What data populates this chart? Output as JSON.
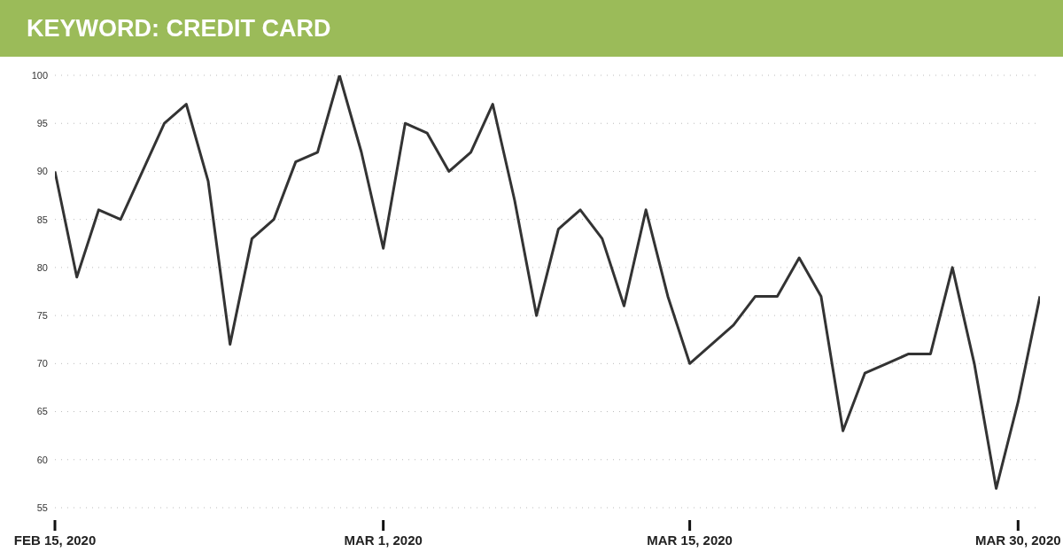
{
  "chart_data": {
    "type": "line",
    "title": "KEYWORD: CREDIT CARD",
    "x": [
      "2020-02-15",
      "2020-02-16",
      "2020-02-17",
      "2020-02-18",
      "2020-02-19",
      "2020-02-20",
      "2020-02-21",
      "2020-02-22",
      "2020-02-23",
      "2020-02-24",
      "2020-02-25",
      "2020-02-26",
      "2020-02-27",
      "2020-02-28",
      "2020-02-29",
      "2020-03-01",
      "2020-03-02",
      "2020-03-03",
      "2020-03-04",
      "2020-03-05",
      "2020-03-06",
      "2020-03-07",
      "2020-03-08",
      "2020-03-09",
      "2020-03-10",
      "2020-03-11",
      "2020-03-12",
      "2020-03-13",
      "2020-03-14",
      "2020-03-15",
      "2020-03-16",
      "2020-03-17",
      "2020-03-18",
      "2020-03-19",
      "2020-03-20",
      "2020-03-21",
      "2020-03-22",
      "2020-03-23",
      "2020-03-24",
      "2020-03-25",
      "2020-03-26",
      "2020-03-27",
      "2020-03-28",
      "2020-03-29",
      "2020-03-30",
      "2020-03-31"
    ],
    "series": [
      {
        "color": "#333333",
        "values": [
          90,
          79,
          86,
          85,
          90,
          95,
          97,
          89,
          72,
          83,
          85,
          91,
          92,
          100,
          92,
          82,
          95,
          94,
          90,
          92,
          97,
          87,
          75,
          84,
          86,
          83,
          76,
          86,
          77,
          70,
          72,
          74,
          77,
          77,
          81,
          77,
          63,
          69,
          70,
          71,
          71,
          80,
          70,
          57,
          66,
          77
        ]
      }
    ],
    "xlim": [
      "2020-02-15",
      "2020-03-31"
    ],
    "xticks": [
      {
        "value": "2020-02-15",
        "label": "FEB 15, 2020"
      },
      {
        "value": "2020-03-01",
        "label": "MAR 1, 2020"
      },
      {
        "value": "2020-03-15",
        "label": "MAR 15, 2020"
      },
      {
        "value": "2020-03-30",
        "label": "MAR 30, 2020"
      }
    ],
    "ylim": [
      55,
      100
    ],
    "yticks": [
      55,
      60,
      65,
      70,
      75,
      80,
      85,
      90,
      95,
      100
    ],
    "grid": "y",
    "legend": false,
    "marker": "none",
    "line_style": "solid"
  }
}
